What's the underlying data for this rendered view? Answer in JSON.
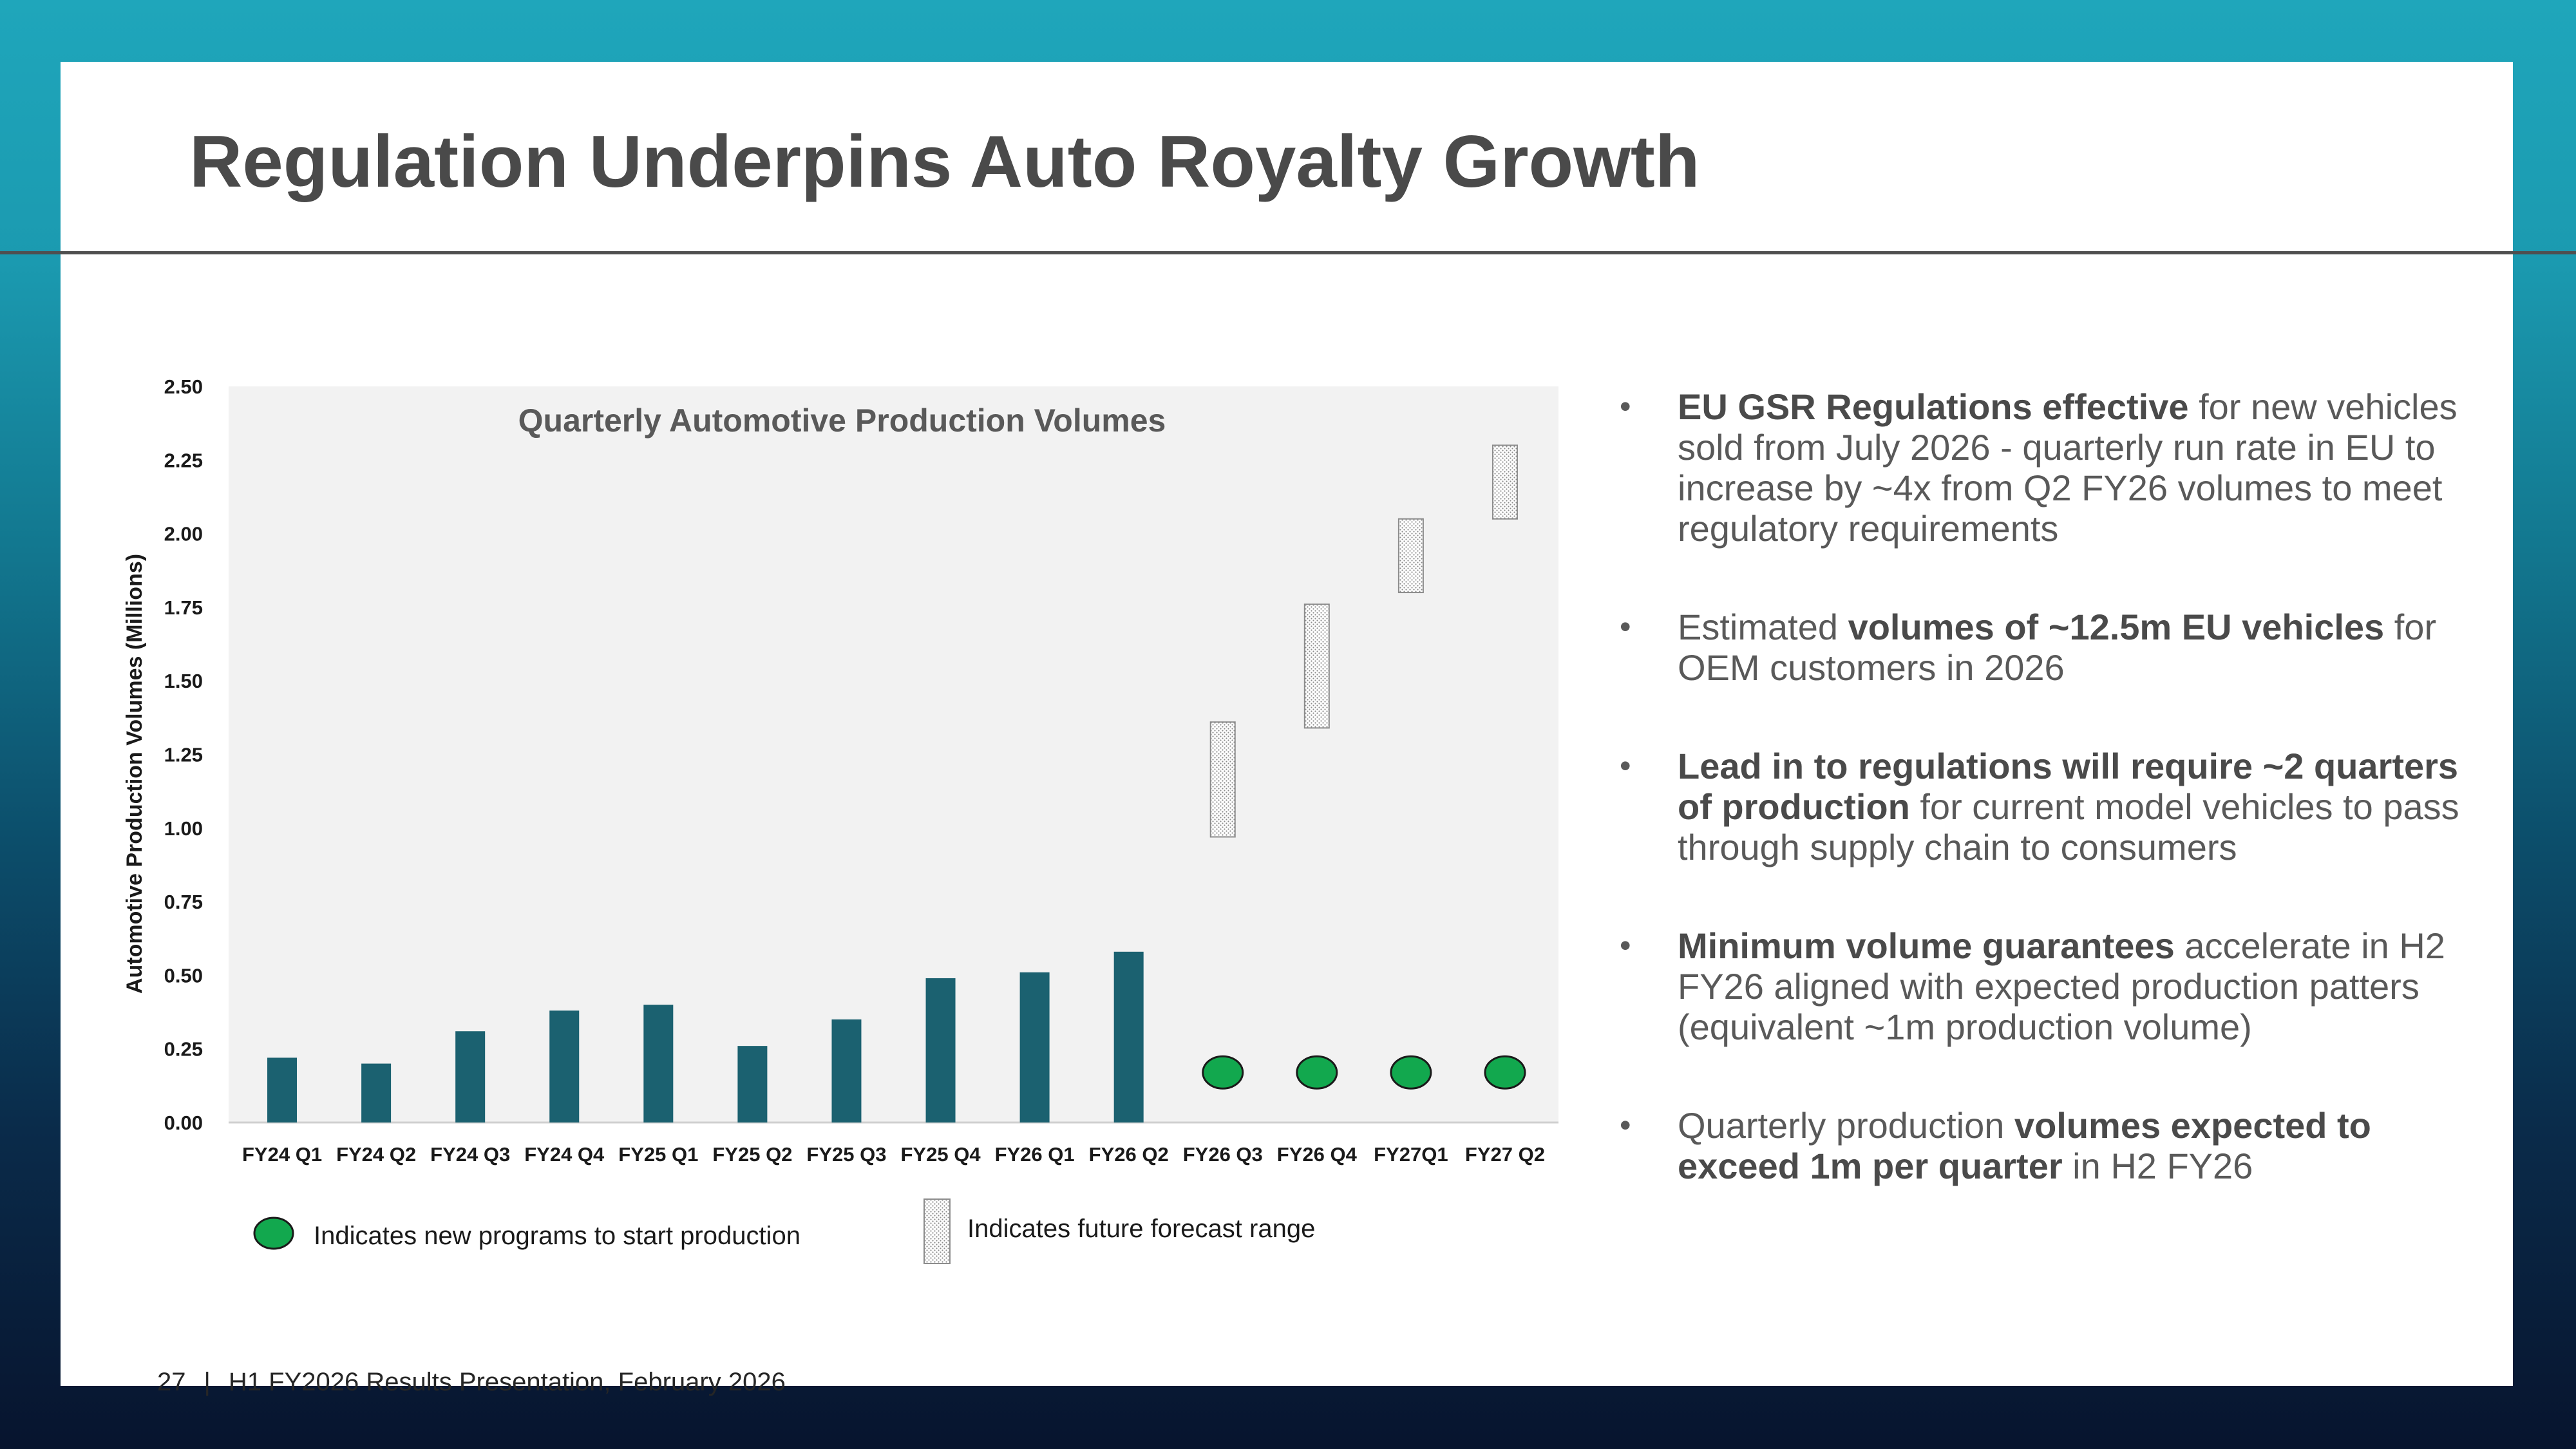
{
  "slide": {
    "title": "Regulation Underpins Auto Royalty Growth",
    "footer": {
      "page": "27",
      "separator": "|",
      "text": "H1 FY2026 Results Presentation, February 2026"
    }
  },
  "colors": {
    "bar": "#1b6170",
    "new_program_marker": "#12a84e",
    "forecast_pattern": "#9a9a9a",
    "plot_background": "#f2f2f2",
    "title_text": "#4a4a4a"
  },
  "chart_data": {
    "type": "bar",
    "title": "Quarterly Automotive Production Volumes",
    "xlabel": "",
    "ylabel": "Automotive Production Volumes (Millions)",
    "ylim": [
      0,
      2.5
    ],
    "yticks": [
      "0.00",
      "0.25",
      "0.50",
      "0.75",
      "1.00",
      "1.25",
      "1.50",
      "1.75",
      "2.00",
      "2.25",
      "2.50"
    ],
    "grid": false,
    "categories": [
      "FY24 Q1",
      "FY24 Q2",
      "FY24 Q3",
      "FY24 Q4",
      "FY25 Q1",
      "FY25 Q2",
      "FY25 Q3",
      "FY25 Q4",
      "FY26 Q1",
      "FY26 Q2",
      "FY26 Q3",
      "FY26 Q4",
      "FY27Q1",
      "FY27 Q2"
    ],
    "series": [
      {
        "values": [
          0.22,
          0.2,
          0.31,
          0.38,
          0.4,
          0.26,
          0.35,
          0.49,
          0.51,
          0.58,
          null,
          null,
          null,
          null
        ]
      }
    ],
    "forecast_ranges": [
      {
        "category": "FY26 Q3",
        "low": 0.97,
        "high": 1.36
      },
      {
        "category": "FY26 Q4",
        "low": 1.34,
        "high": 1.76
      },
      {
        "category": "FY27Q1",
        "low": 1.8,
        "high": 2.05
      },
      {
        "category": "FY27 Q2",
        "low": 2.05,
        "high": 2.3
      }
    ],
    "new_program_markers": [
      {
        "category": "FY26 Q3",
        "y": 0.17
      },
      {
        "category": "FY26 Q4",
        "y": 0.17
      },
      {
        "category": "FY27Q1",
        "y": 0.17
      },
      {
        "category": "FY27 Q2",
        "y": 0.17
      }
    ],
    "legend": [
      {
        "marker": "green-ellipse",
        "label": "Indicates new programs to start production"
      },
      {
        "marker": "dotted-rectangle",
        "label": "Indicates future forecast range"
      }
    ]
  },
  "bullets": [
    {
      "segments": [
        {
          "text": "EU GSR Regulations effective",
          "bold": true
        },
        {
          "text": " for new vehicles sold from July 2026 - quarterly run rate in EU to increase by ~4x from Q2 FY26 volumes to meet regulatory requirements",
          "bold": false
        }
      ]
    },
    {
      "segments": [
        {
          "text": "Estimated ",
          "bold": false
        },
        {
          "text": "volumes of ~12.5m EU vehicles",
          "bold": true
        },
        {
          "text": " for OEM customers in 2026",
          "bold": false
        }
      ]
    },
    {
      "segments": [
        {
          "text": "Lead in to regulations will require ~2 quarters of production",
          "bold": true
        },
        {
          "text": " for current model vehicles to pass through supply chain to consumers",
          "bold": false
        }
      ]
    },
    {
      "segments": [
        {
          "text": "Minimum volume guarantees",
          "bold": true
        },
        {
          "text": " accelerate in H2 FY26 aligned with expected production patters (equivalent ~1m production volume)",
          "bold": false
        }
      ]
    },
    {
      "segments": [
        {
          "text": "Quarterly production ",
          "bold": false
        },
        {
          "text": "volumes expected to exceed 1m per quarter",
          "bold": true
        },
        {
          "text": " in H2 FY26",
          "bold": false
        }
      ]
    }
  ]
}
